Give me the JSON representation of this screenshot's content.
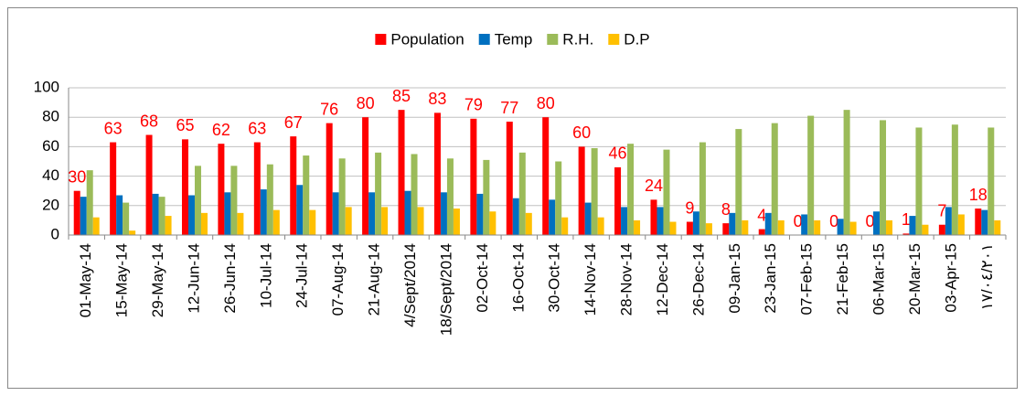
{
  "chart_data": {
    "type": "bar",
    "categories": [
      "01-May-14",
      "15-May-14",
      "29-May-14",
      "12-Jun-14",
      "26-Jun-14",
      "10-Jul-14",
      "24-Jul-14",
      "07-Aug-14",
      "21-Aug-14",
      "4/Sept/2014",
      "18/Sept/2014",
      "02-Oct-14",
      "16-Oct-14",
      "30-Oct-14",
      "14-Nov-14",
      "28-Nov-14",
      "12-Dec-14",
      "26-Dec-14",
      "09-Jan-15",
      "23-Jan-15",
      "07-Feb-15",
      "21-Feb-15",
      "06-Mar-15",
      "20-Mar-15",
      "03-Apr-15",
      "١٧/٠٤/٢٠١"
    ],
    "series": [
      {
        "name": "Population",
        "color": "#ff0000",
        "show_labels": true,
        "values": [
          30,
          63,
          68,
          65,
          62,
          63,
          67,
          76,
          80,
          85,
          83,
          79,
          77,
          80,
          60,
          46,
          24,
          9,
          8,
          4,
          0,
          0,
          0,
          1,
          7,
          18
        ]
      },
      {
        "name": "Temp",
        "color": "#0070c0",
        "values": [
          26,
          27,
          28,
          27,
          29,
          31,
          34,
          29,
          29,
          30,
          29,
          28,
          25,
          24,
          22,
          19,
          19,
          16,
          15,
          15,
          14,
          11,
          16,
          13,
          19,
          17
        ]
      },
      {
        "name": "R.H.",
        "color": "#9bbb59",
        "values": [
          44,
          22,
          26,
          47,
          47,
          48,
          54,
          52,
          56,
          55,
          52,
          51,
          56,
          50,
          59,
          62,
          58,
          63,
          72,
          76,
          81,
          85,
          78,
          73,
          75,
          73
        ]
      },
      {
        "name": "D.P",
        "color": "#ffc000",
        "values": [
          12,
          3,
          13,
          15,
          15,
          17,
          17,
          19,
          19,
          19,
          18,
          16,
          15,
          12,
          12,
          10,
          9,
          8,
          10,
          10,
          10,
          9,
          10,
          7,
          14,
          10
        ]
      }
    ],
    "ylim": [
      0,
      100
    ],
    "yticks": [
      0,
      20,
      40,
      60,
      80,
      100
    ],
    "grid": true,
    "legend": "top"
  }
}
